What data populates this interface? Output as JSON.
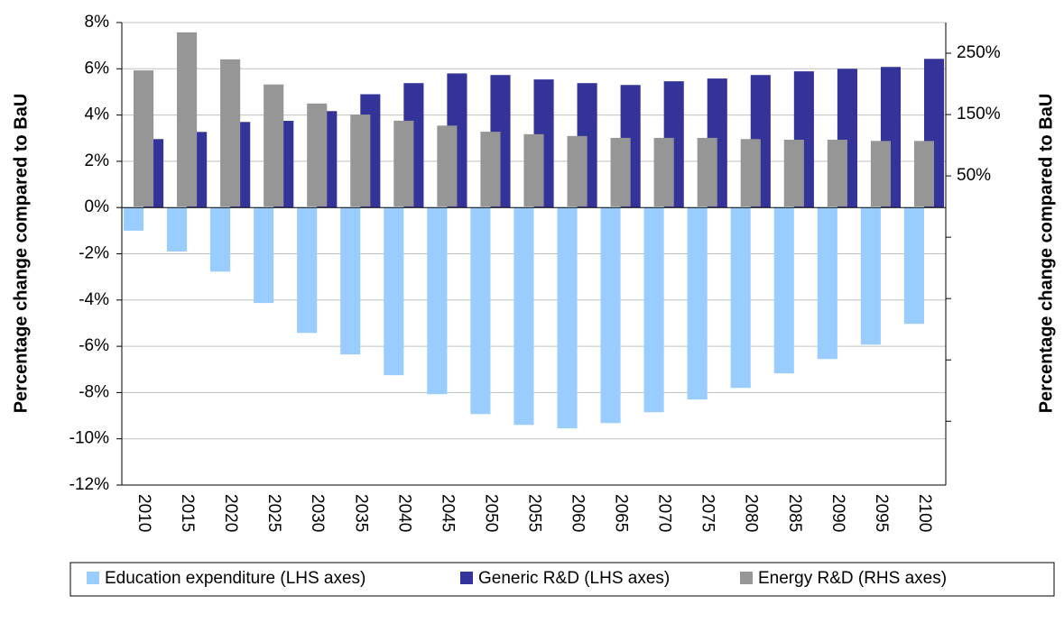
{
  "chart_data": {
    "type": "bar",
    "y_label": "Percentage change compared to BaU",
    "y2_label": "Percentage change compared to BaU",
    "categories": [
      "2010",
      "2015",
      "2020",
      "2025",
      "2030",
      "2035",
      "2040",
      "2045",
      "2050",
      "2055",
      "2060",
      "2065",
      "2070",
      "2075",
      "2080",
      "2085",
      "2090",
      "2095",
      "2100"
    ],
    "series": [
      {
        "name": "Education expenditure (LHS axes)",
        "color": "#99ccff",
        "axis": "y",
        "values": [
          -1.0,
          -1.9,
          -2.77,
          -4.13,
          -5.42,
          -6.35,
          -7.25,
          -8.07,
          -8.93,
          -9.4,
          -9.55,
          -9.32,
          -8.85,
          -8.3,
          -7.8,
          -7.17,
          -6.55,
          -5.93,
          -5.03
        ]
      },
      {
        "name": "Generic R&D (LHS axes)",
        "color": "#333399",
        "axis": "y",
        "values": [
          2.96,
          3.27,
          3.7,
          3.75,
          4.17,
          4.9,
          5.38,
          5.8,
          5.73,
          5.54,
          5.38,
          5.3,
          5.46,
          5.58,
          5.73,
          5.89,
          6.0,
          6.08,
          6.43
        ]
      },
      {
        "name": "Energy R&D (RHS axes)",
        "color": "#969696",
        "axis": "y2",
        "values": [
          222,
          284,
          240,
          199,
          168,
          150,
          140,
          132,
          122,
          118,
          115,
          112,
          112,
          112,
          110,
          109,
          109,
          107,
          107
        ]
      }
    ],
    "ylim": [
      -12,
      8
    ],
    "yticks": [
      {
        "value": -12,
        "label": "-12%"
      },
      {
        "value": -10,
        "label": "-10%"
      },
      {
        "value": -8,
        "label": "-8%"
      },
      {
        "value": -6,
        "label": "-6%"
      },
      {
        "value": -4,
        "label": "-4%"
      },
      {
        "value": -2,
        "label": "-2%"
      },
      {
        "value": 0,
        "label": "0%"
      },
      {
        "value": 2,
        "label": "2%"
      },
      {
        "value": 4,
        "label": "4%"
      },
      {
        "value": 6,
        "label": "6%"
      },
      {
        "value": 8,
        "label": "8%"
      }
    ],
    "y2lim": [
      -454,
      300
    ],
    "y2ticks": [
      {
        "value": 50,
        "label": "50%"
      },
      {
        "value": 150,
        "label": "150%"
      },
      {
        "value": 250,
        "label": "250%"
      }
    ],
    "y2minor_ticks": [
      -350,
      -250,
      -150,
      -50
    ],
    "grid": true
  }
}
